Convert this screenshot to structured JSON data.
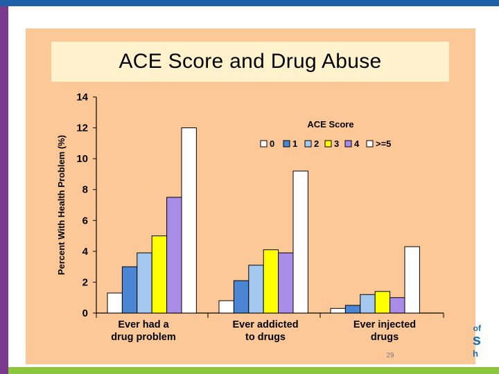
{
  "slide": {
    "page_number": "29",
    "logo_fragments": [
      "of",
      "s",
      "h"
    ]
  },
  "colors": {
    "panel_background": "#fdc897",
    "title_background": "#fff2cc",
    "top_band": "#1f5fa8",
    "left_band": "#7b3a8c",
    "bottom_band": "#8cc63f"
  },
  "chart_data": {
    "type": "bar",
    "title": "ACE Score and Drug Abuse",
    "ylabel": "Percent With Health Problem (%)",
    "xlabel": "",
    "ylim": [
      0,
      14
    ],
    "yticks": [
      0,
      2,
      4,
      6,
      8,
      10,
      12,
      14
    ],
    "grid": false,
    "legend": {
      "title": "ACE Score",
      "position": "top-right"
    },
    "categories": [
      [
        "Ever had a",
        "drug problem"
      ],
      [
        "Ever addicted",
        "to drugs"
      ],
      [
        "Ever injected",
        "drugs"
      ]
    ],
    "series": [
      {
        "name": "0",
        "color": "#ffffff",
        "values": [
          1.3,
          0.8,
          0.3
        ]
      },
      {
        "name": "1",
        "color": "#4a86d4",
        "values": [
          3.0,
          2.1,
          0.5
        ]
      },
      {
        "name": "2",
        "color": "#a4c8f0",
        "values": [
          3.9,
          3.1,
          1.2
        ]
      },
      {
        "name": "3",
        "color": "#ffff00",
        "values": [
          5.0,
          4.1,
          1.4
        ]
      },
      {
        "name": "4",
        "color": "#a98ce8",
        "values": [
          7.5,
          3.9,
          1.0
        ]
      },
      {
        "name": ">=5",
        "color": "#ffffff",
        "values": [
          12.0,
          9.2,
          4.3
        ]
      }
    ]
  }
}
